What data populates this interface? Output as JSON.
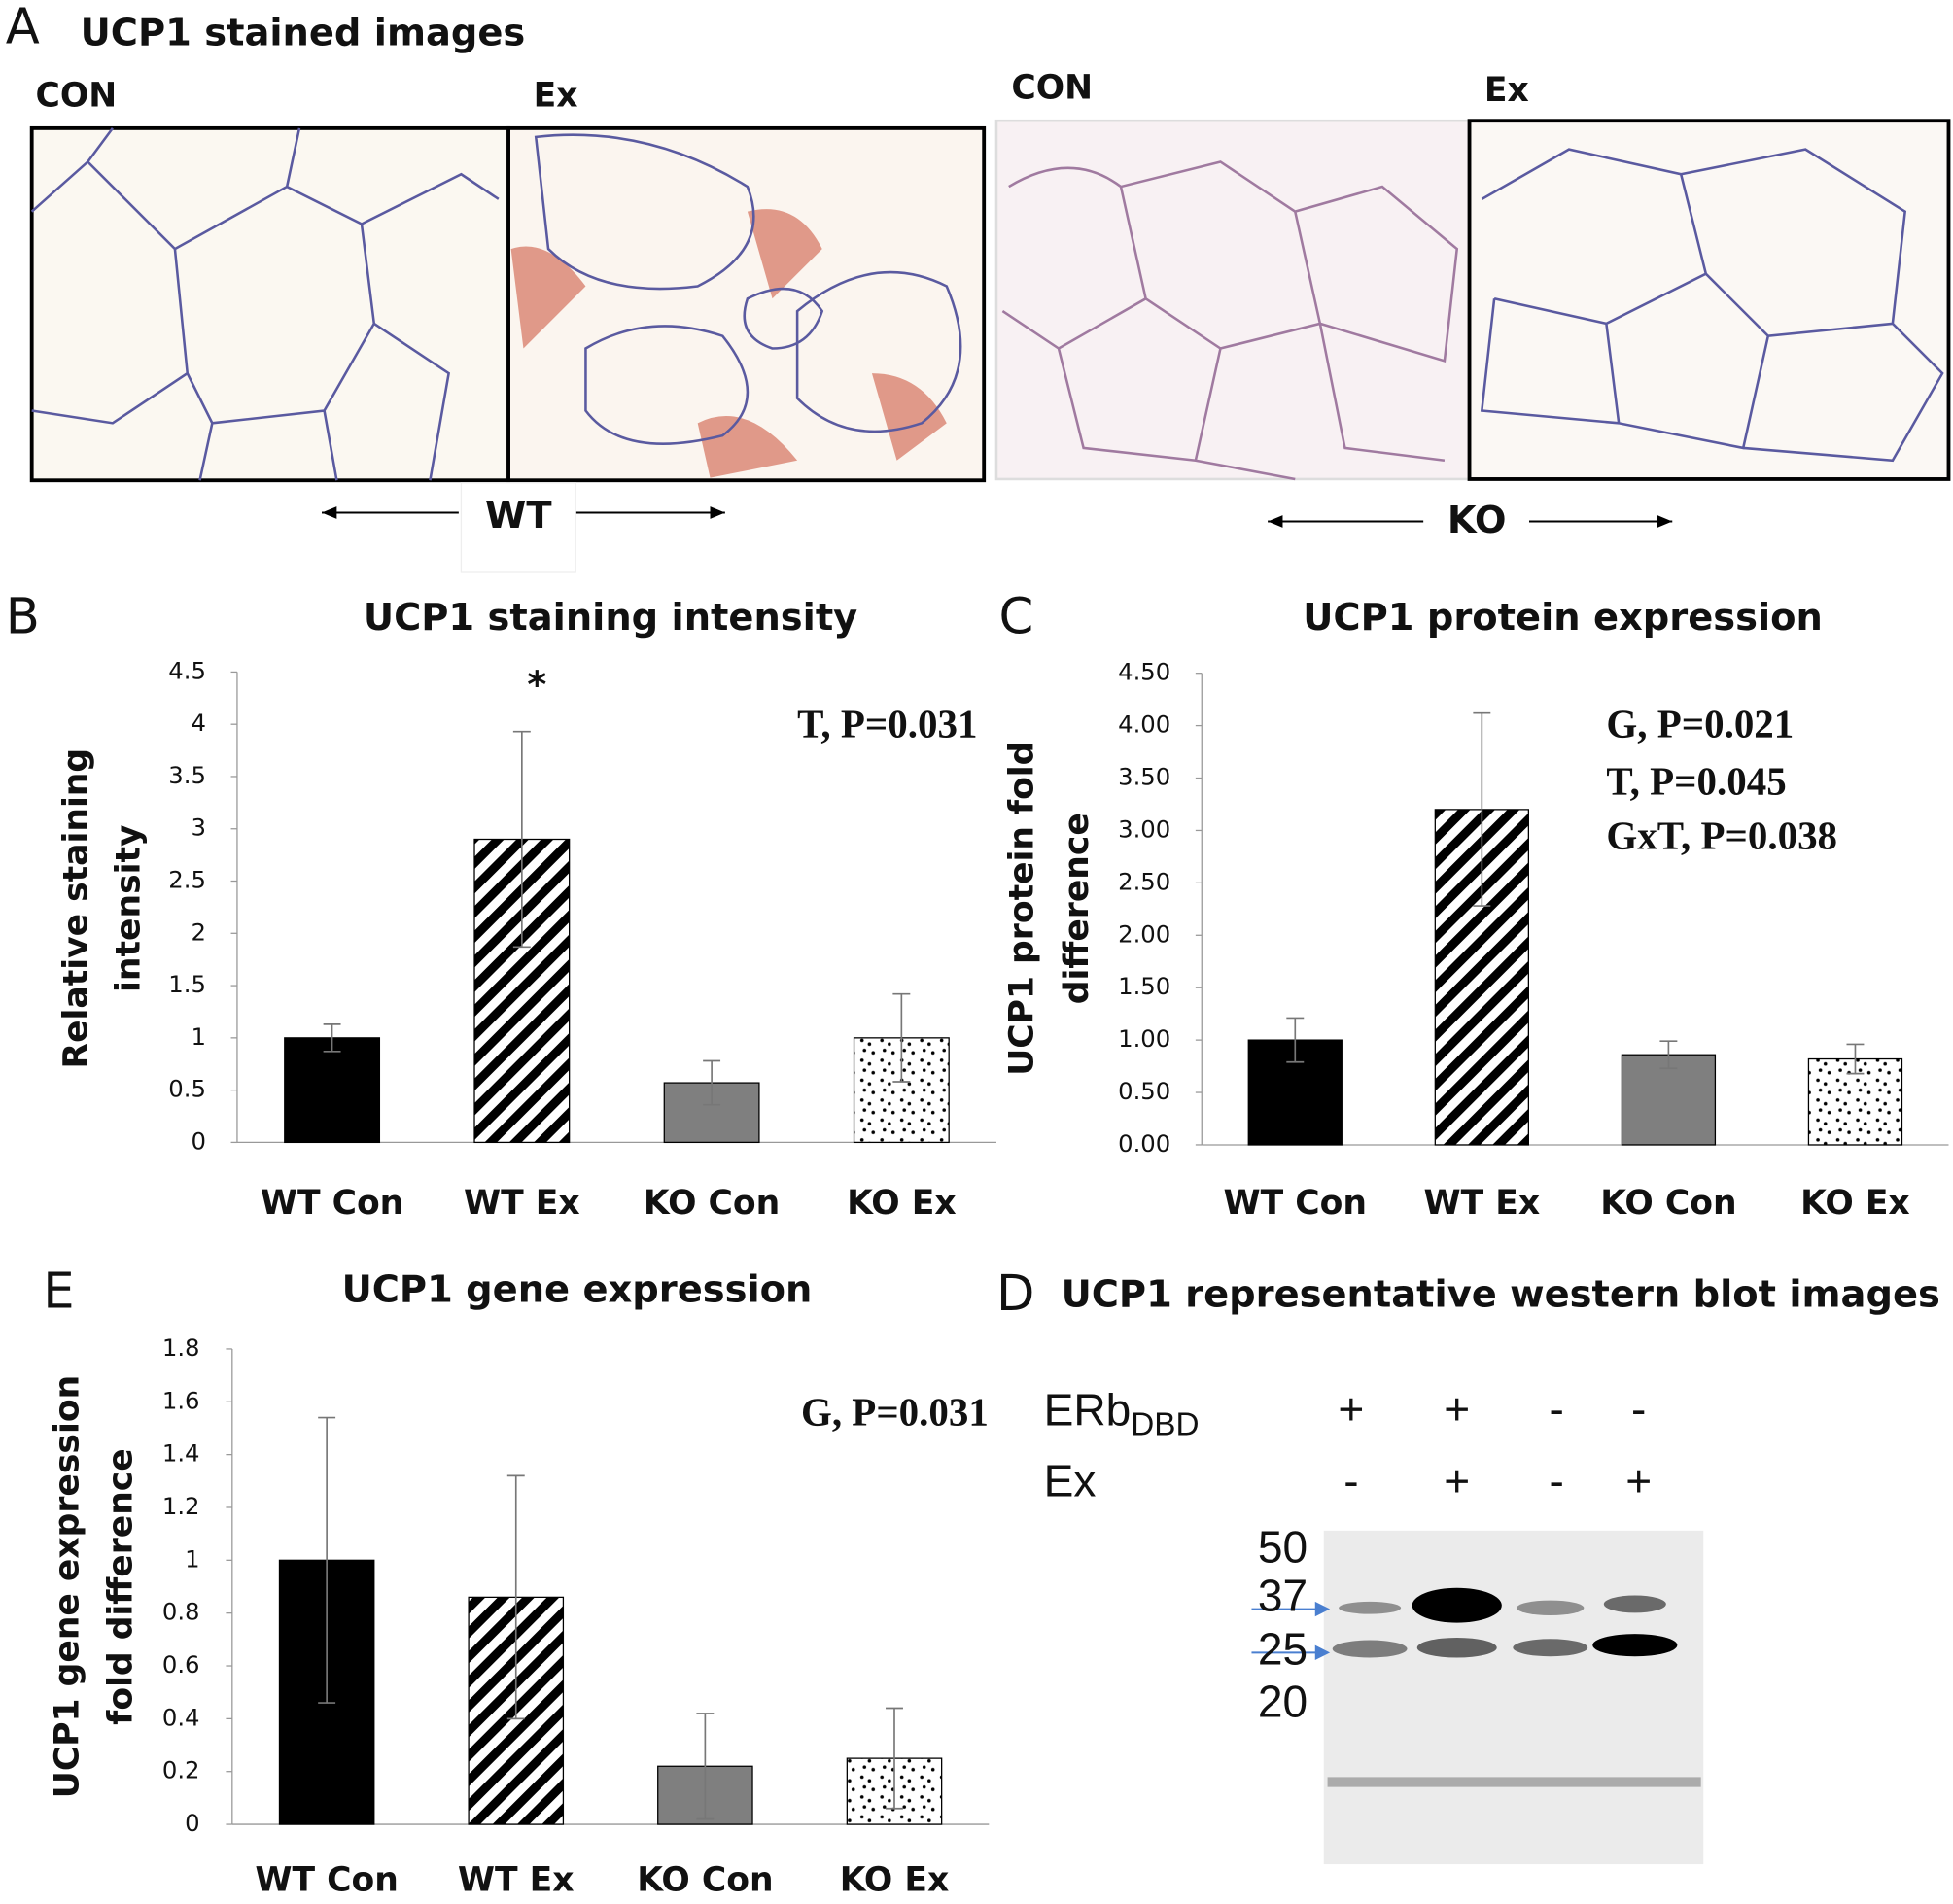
{
  "panel_a": {
    "panel_label": "A",
    "title": "UCP1 stained images",
    "images": [
      "CON",
      "Ex",
      "CON",
      "Ex"
    ],
    "groups": [
      "WT",
      "KO"
    ]
  },
  "chart_data": [
    {
      "type": "bar",
      "panel_label": "B",
      "title": "UCP1 staining intensity",
      "y_label": [
        "Relative staining",
        "intensity"
      ],
      "categories": [
        "WT Con",
        "WT Ex",
        "KO Con",
        "KO Ex"
      ],
      "values": [
        1.0,
        2.9,
        0.57,
        1.0
      ],
      "errors": [
        0.13,
        1.03,
        0.21,
        0.42
      ],
      "patterns": [
        "solid",
        "stripes",
        "solid",
        "dots"
      ],
      "colors": [
        "#000000",
        "#000000",
        "#7f7f7f",
        "#000000"
      ],
      "ylim": [
        0,
        4.5
      ],
      "yticks": [
        0,
        0.5,
        1,
        1.5,
        2,
        2.5,
        3,
        3.5,
        4,
        4.5
      ],
      "annotations": [
        "*",
        "T, P=0.031"
      ]
    },
    {
      "type": "bar",
      "panel_label": "C",
      "title": "UCP1 protein expression",
      "y_label": [
        "UCP1 protein fold",
        "difference"
      ],
      "categories": [
        "WT Con",
        "WT Ex",
        "KO Con",
        "KO Ex"
      ],
      "values": [
        1.0,
        3.2,
        0.86,
        0.82
      ],
      "errors": [
        0.21,
        0.92,
        0.13,
        0.14
      ],
      "patterns": [
        "solid",
        "stripes",
        "solid",
        "dots"
      ],
      "colors": [
        "#000000",
        "#000000",
        "#7f7f7f",
        "#000000"
      ],
      "ylim": [
        0,
        4.5
      ],
      "yticks": [
        {
          "value": 0,
          "label": "0.00"
        },
        {
          "value": 0.5,
          "label": "0.50"
        },
        {
          "value": 1,
          "label": "1.00"
        },
        {
          "value": 1.5,
          "label": "1.50"
        },
        {
          "value": 2,
          "label": "2.00"
        },
        {
          "value": 2.5,
          "label": "2.50"
        },
        {
          "value": 3,
          "label": "3.00"
        },
        {
          "value": 3.5,
          "label": "3.50"
        },
        {
          "value": 4,
          "label": "4.00"
        },
        {
          "value": 4.5,
          "label": "4.50"
        }
      ],
      "annotations": [
        "G, P=0.021",
        "T, P=0.045",
        "GxT, P=0.038"
      ]
    },
    {
      "type": "bar",
      "panel_label": "E",
      "title": "UCP1 gene expression",
      "y_label": [
        "UCP1 gene expression",
        "fold difference"
      ],
      "categories": [
        "WT Con",
        "WT Ex",
        "KO Con",
        "KO Ex"
      ],
      "values": [
        1.0,
        0.86,
        0.22,
        0.25
      ],
      "errors": [
        0.54,
        0.46,
        0.2,
        0.19
      ],
      "patterns": [
        "solid",
        "stripes",
        "solid",
        "dots"
      ],
      "colors": [
        "#000000",
        "#000000",
        "#7f7f7f",
        "#000000"
      ],
      "ylim": [
        0,
        1.8
      ],
      "yticks": [
        0,
        0.2,
        0.4,
        0.6,
        0.8,
        1,
        1.2,
        1.4,
        1.6,
        1.8
      ],
      "annotations": [
        "G, P=0.031"
      ]
    }
  ],
  "panel_d": {
    "panel_label": "D",
    "title": "UCP1 representative western blot images",
    "rows": [
      {
        "label": "ERb",
        "subscript": "DBD",
        "signs": [
          "+",
          "+",
          "-",
          "-"
        ]
      },
      {
        "label": "Ex",
        "signs": [
          "-",
          "+",
          "-",
          "+"
        ]
      }
    ],
    "markers": [
      "50",
      "37",
      "25",
      "20"
    ]
  }
}
